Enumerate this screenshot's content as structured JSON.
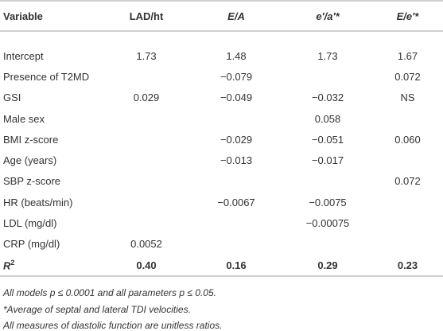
{
  "table": {
    "header": [
      "Variable",
      "LAD/ht",
      "E/A",
      "e′/a′*",
      "E/e′*"
    ],
    "rows": [
      [
        "Intercept",
        "1.73",
        "1.48",
        "1.73",
        "1.67"
      ],
      [
        "Presence of T2MD",
        "",
        "−0.079",
        "",
        "0.072"
      ],
      [
        "GSI",
        "0.029",
        "−0.049",
        "−0.032",
        "NS"
      ],
      [
        "Male sex",
        "",
        "",
        "0.058",
        ""
      ],
      [
        "BMI z-score",
        "",
        "−0.029",
        "−0.051",
        "0.060"
      ],
      [
        "Age (years)",
        "",
        "−0.013",
        "−0.017",
        ""
      ],
      [
        "SBP z-score",
        "",
        "",
        "",
        "0.072"
      ],
      [
        "HR (beats/min)",
        "",
        "−0.0067",
        "−0.0075",
        ""
      ],
      [
        "LDL (mg/dl)",
        "",
        "",
        "−0.00075",
        ""
      ],
      [
        "CRP (mg/dl)",
        "0.0052",
        "",
        "",
        ""
      ]
    ],
    "r2_row": {
      "label": "R",
      "superscript": "2",
      "values": [
        "0.40",
        "0.16",
        "0.29",
        "0.23"
      ]
    }
  },
  "footnotes": [
    "All models p ≤ 0.0001 and all parameters p ≤ 0.05.",
    "*Average of septal and lateral TDI velocities.",
    "All measures of diastolic function are unitless ratios."
  ]
}
